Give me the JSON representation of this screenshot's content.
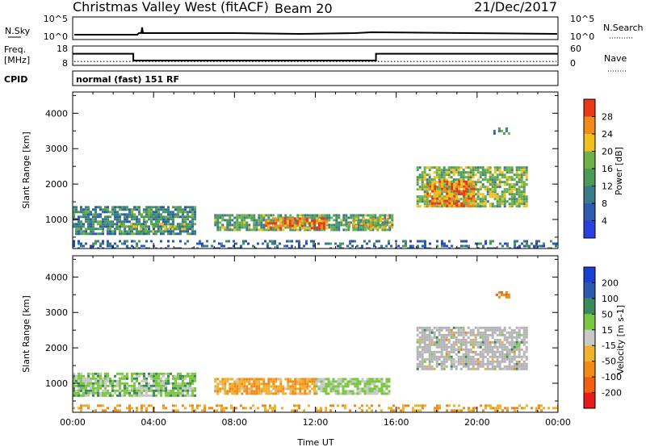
{
  "header": {
    "title": "Christmas Valley West (fitACF)",
    "beam": "Beam 20",
    "date": "21/Dec/2017"
  },
  "noise_panel": {
    "left_label": "N.Sky",
    "right_label": "N.Search",
    "tick_top": "10^5",
    "tick_bottom": "10^0"
  },
  "freq_panel": {
    "left_label_1": "Freq.",
    "left_label_2": "[MHz]",
    "right_label": "Nave",
    "left_ticks": [
      "18",
      "8"
    ],
    "right_ticks": [
      "60",
      "0"
    ],
    "segments": [
      {
        "x0": 0,
        "x1": 3,
        "freq": 14
      },
      {
        "x0": 3,
        "x1": 15,
        "freq": 10.5
      },
      {
        "x0": 15,
        "x1": 24,
        "freq": 14
      }
    ],
    "nave_level": 12
  },
  "cpid_panel": {
    "label": "CPID",
    "text": "normal (fast) 151 RF"
  },
  "colors": {
    "power_scale": [
      "#2a3fe0",
      "#2c5bb0",
      "#3a7a8a",
      "#4b9a5a",
      "#6eb04a",
      "#f0c020",
      "#f08a1a",
      "#e83a1a"
    ],
    "velocity_scale": [
      "#e81a1a",
      "#f06010",
      "#f08a1a",
      "#f0b030",
      "#c8c8c8",
      "#7ac840",
      "#3a8a5a",
      "#2a5ab0",
      "#1a40d0"
    ],
    "ground_scatter": "#b4b4b4"
  },
  "chart_data": [
    {
      "type": "heatmap",
      "name": "power",
      "xlabel": "",
      "ylabel": "Slant Range [km]",
      "xlim": [
        0,
        24
      ],
      "ylim": [
        180,
        4600
      ],
      "yticks": [
        1000,
        2000,
        3000,
        4000
      ],
      "colorbar": {
        "label": "Power [dB]",
        "ticks": [
          4,
          8,
          12,
          16,
          20,
          24,
          28
        ],
        "range": [
          0,
          32
        ]
      },
      "regions": [
        {
          "t0": 0.0,
          "t1": 6.0,
          "r0": 620,
          "r1": 1380,
          "level": 0.35
        },
        {
          "t0": 2.0,
          "t1": 5.5,
          "r0": 650,
          "r1": 900,
          "level": 0.55
        },
        {
          "t0": 7.0,
          "t1": 15.8,
          "r0": 720,
          "r1": 1150,
          "level": 0.45
        },
        {
          "t0": 9.5,
          "t1": 12.5,
          "r0": 760,
          "r1": 1060,
          "level": 0.85
        },
        {
          "t0": 13.5,
          "t1": 15.7,
          "r0": 760,
          "r1": 1050,
          "level": 0.65
        },
        {
          "t0": 17.0,
          "t1": 22.5,
          "r0": 1350,
          "r1": 2500,
          "level": 0.55
        },
        {
          "t0": 17.5,
          "t1": 19.8,
          "r0": 1400,
          "r1": 2100,
          "level": 0.85
        },
        {
          "t0": 0.0,
          "t1": 24.0,
          "r0": 200,
          "r1": 420,
          "level": 0.2
        },
        {
          "t0": 20.8,
          "t1": 21.6,
          "r0": 3400,
          "r1": 3600,
          "level": 0.4
        }
      ]
    },
    {
      "type": "heatmap",
      "name": "velocity",
      "xlabel": "Time UT",
      "ylabel": "Slant Range [km]",
      "xlim": [
        0,
        24
      ],
      "ylim": [
        180,
        4600
      ],
      "xticks": [
        "00:00",
        "04:00",
        "08:00",
        "12:00",
        "16:00",
        "20:00",
        "00:00"
      ],
      "yticks": [
        1000,
        2000,
        3000,
        4000
      ],
      "colorbar": {
        "label": "Velocity [m s-1]",
        "ticks": [
          200,
          100,
          50,
          15,
          -15,
          -50,
          -100,
          -200
        ]
      },
      "regions": [
        {
          "t0": 0.0,
          "t1": 6.0,
          "r0": 620,
          "r1": 1300,
          "value": 30
        },
        {
          "t0": 7.0,
          "t1": 12.0,
          "r0": 700,
          "r1": 1150,
          "value": -40
        },
        {
          "t0": 12.0,
          "t1": 15.7,
          "r0": 720,
          "r1": 1150,
          "value": 20
        },
        {
          "t0": 17.0,
          "t1": 22.5,
          "r0": 1400,
          "r1": 2600,
          "value": 0
        },
        {
          "t0": 0.0,
          "t1": 24.0,
          "r0": 200,
          "r1": 400,
          "value": -50
        },
        {
          "t0": 20.8,
          "t1": 21.6,
          "r0": 3400,
          "r1": 3600,
          "value": -80
        }
      ]
    }
  ]
}
